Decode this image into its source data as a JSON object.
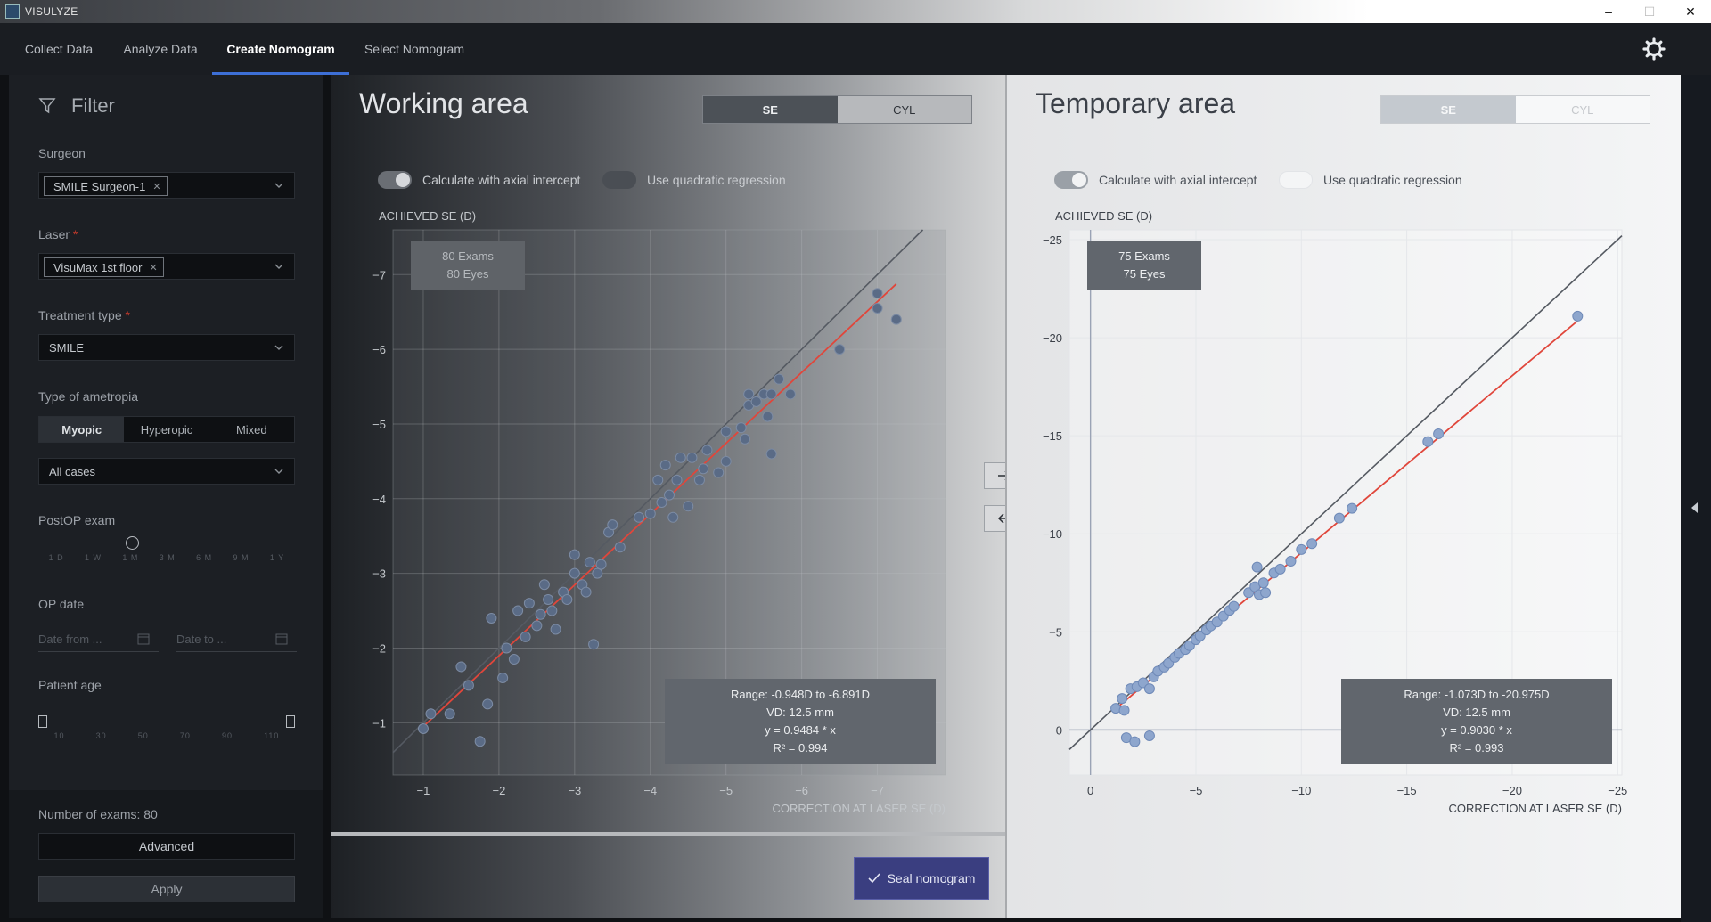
{
  "window": {
    "title": "VISULYZE",
    "controls": {
      "minimize": "–",
      "maximize": "☐",
      "close": "✕"
    }
  },
  "nav": {
    "tabs": [
      "Collect Data",
      "Analyze Data",
      "Create Nomogram",
      "Select Nomogram"
    ],
    "active": "Create Nomogram"
  },
  "filter": {
    "title": "Filter",
    "surgeon": {
      "label": "Surgeon",
      "chip": "SMILE Surgeon-1"
    },
    "laser": {
      "label": "Laser",
      "required": "*",
      "chip": "VisuMax 1st floor"
    },
    "treatment": {
      "label": "Treatment type",
      "required": "*",
      "value": "SMILE"
    },
    "ametropia": {
      "label": "Type of ametropia",
      "options": [
        "Myopic",
        "Hyperopic",
        "Mixed"
      ],
      "selected": "Myopic",
      "cases": "All cases"
    },
    "postop": {
      "label": "PostOP exam",
      "ticks": [
        "1 D",
        "1 W",
        "1 M",
        "3 M",
        "6 M",
        "9 M",
        "1 Y"
      ],
      "selected_index": 2
    },
    "opdate": {
      "label": "OP date",
      "from_placeholder": "Date from ...",
      "to_placeholder": "Date to ..."
    },
    "age": {
      "label": "Patient age",
      "ticks": [
        "10",
        "30",
        "50",
        "70",
        "90",
        "110"
      ]
    },
    "exams": "Number of exams: 80",
    "advanced": "Advanced",
    "apply": "Apply"
  },
  "working": {
    "title": "Working area",
    "se": "SE",
    "cyl": "CYL",
    "toggle1": "Calculate with axial intercept",
    "toggle2": "Use quadratic regression",
    "counts": {
      "exams": "80 Exams",
      "eyes": "80 Eyes"
    },
    "stats": {
      "range": "Range: -0.948D to -6.891D",
      "vd": "VD: 12.5 mm",
      "eq": "y = 0.9484 * x",
      "r2": "R² = 0.994"
    },
    "seal": "Seal nomogram",
    "chart_data": {
      "type": "scatter",
      "title": "",
      "ylabel": "ACHIEVED SE (D)",
      "xlabel": "CORRECTION AT LASER SE (D)",
      "xlim": [
        -0.6,
        -7.9
      ],
      "ylim": [
        -0.3,
        -7.6
      ],
      "xticks": [
        -1,
        -2,
        -3,
        -4,
        -5,
        -6,
        -7
      ],
      "yticks": [
        -1,
        -2,
        -3,
        -4,
        -5,
        -6,
        -7
      ],
      "xtick_labels": [
        "−1",
        "−2",
        "−3",
        "−4",
        "−5",
        "−6",
        "−7"
      ],
      "ytick_labels": [
        "−1",
        "−2",
        "−3",
        "−4",
        "−5",
        "−6",
        "−7"
      ],
      "identity_line": true,
      "slope": 0.9484,
      "points": [
        [
          -1.0,
          -0.92
        ],
        [
          -1.1,
          -1.12
        ],
        [
          -1.35,
          -1.12
        ],
        [
          -1.5,
          -1.75
        ],
        [
          -1.6,
          -1.5
        ],
        [
          -1.75,
          -0.75
        ],
        [
          -1.85,
          -1.25
        ],
        [
          -1.9,
          -2.4
        ],
        [
          -2.05,
          -1.6
        ],
        [
          -2.1,
          -2.0
        ],
        [
          -2.2,
          -1.85
        ],
        [
          -2.25,
          -2.5
        ],
        [
          -2.35,
          -2.15
        ],
        [
          -2.4,
          -2.6
        ],
        [
          -2.5,
          -2.3
        ],
        [
          -2.55,
          -2.45
        ],
        [
          -2.6,
          -2.85
        ],
        [
          -2.65,
          -2.65
        ],
        [
          -2.7,
          -2.5
        ],
        [
          -2.75,
          -2.25
        ],
        [
          -2.85,
          -2.75
        ],
        [
          -2.9,
          -2.65
        ],
        [
          -3.0,
          -3.0
        ],
        [
          -3.0,
          -3.25
        ],
        [
          -3.1,
          -2.85
        ],
        [
          -3.15,
          -2.75
        ],
        [
          -3.2,
          -3.15
        ],
        [
          -3.25,
          -2.05
        ],
        [
          -3.3,
          -3.0
        ],
        [
          -3.35,
          -3.12
        ],
        [
          -3.45,
          -3.55
        ],
        [
          -3.5,
          -3.65
        ],
        [
          -3.6,
          -3.35
        ],
        [
          -3.85,
          -3.75
        ],
        [
          -4.0,
          -3.8
        ],
        [
          -4.1,
          -4.25
        ],
        [
          -4.15,
          -3.95
        ],
        [
          -4.2,
          -4.45
        ],
        [
          -4.25,
          -4.05
        ],
        [
          -4.3,
          -3.75
        ],
        [
          -4.35,
          -4.25
        ],
        [
          -4.4,
          -4.55
        ],
        [
          -4.5,
          -3.9
        ],
        [
          -4.55,
          -4.55
        ],
        [
          -4.65,
          -4.25
        ],
        [
          -4.7,
          -4.4
        ],
        [
          -4.75,
          -4.65
        ],
        [
          -4.9,
          -4.35
        ],
        [
          -5.0,
          -4.9
        ],
        [
          -5.0,
          -4.5
        ],
        [
          -5.2,
          -4.95
        ],
        [
          -5.25,
          -4.8
        ],
        [
          -5.3,
          -5.25
        ],
        [
          -5.3,
          -5.4
        ],
        [
          -5.4,
          -5.3
        ],
        [
          -5.5,
          -5.4
        ],
        [
          -5.55,
          -5.1
        ],
        [
          -5.6,
          -5.4
        ],
        [
          -5.6,
          -4.6
        ],
        [
          -5.7,
          -5.6
        ],
        [
          -5.85,
          -5.4
        ],
        [
          -6.5,
          -6.0
        ],
        [
          -7.0,
          -6.55
        ],
        [
          -7.0,
          -6.75
        ],
        [
          -7.25,
          -6.4
        ]
      ]
    }
  },
  "temporary": {
    "title": "Temporary area",
    "se": "SE",
    "cyl": "CYL",
    "toggle1": "Calculate with axial intercept",
    "toggle2": "Use quadratic regression",
    "counts": {
      "exams": "75 Exams",
      "eyes": "75 Eyes"
    },
    "stats": {
      "range": "Range: -1.073D to -20.975D",
      "vd": "VD: 12.5 mm",
      "eq": "y = 0.9030 * x",
      "r2": "R² = 0.993"
    },
    "chart_data": {
      "type": "scatter",
      "title": "",
      "ylabel": "ACHIEVED SE (D)",
      "xlabel": "CORRECTION AT LASER SE (D)",
      "xlim": [
        1.0,
        -25.2
      ],
      "ylim": [
        2.3,
        -25.5
      ],
      "xticks": [
        0,
        -5,
        -10,
        -15,
        -20,
        -25
      ],
      "yticks": [
        0,
        -5,
        -10,
        -15,
        -20,
        -25
      ],
      "xtick_labels": [
        "0",
        "−5",
        "−10",
        "−15",
        "−20",
        "−25"
      ],
      "ytick_labels": [
        "0",
        "−5",
        "−10",
        "−15",
        "−20",
        "−25"
      ],
      "identity_line": true,
      "slope": 0.903,
      "points": [
        [
          -1.2,
          -1.1
        ],
        [
          -1.5,
          -1.6
        ],
        [
          -1.6,
          -1.0
        ],
        [
          -1.7,
          0.4
        ],
        [
          -1.9,
          -2.1
        ],
        [
          -2.1,
          0.6
        ],
        [
          -2.2,
          -2.2
        ],
        [
          -2.5,
          -2.4
        ],
        [
          -2.8,
          -2.1
        ],
        [
          -2.8,
          0.3
        ],
        [
          -3.0,
          -2.7
        ],
        [
          -3.2,
          -3.0
        ],
        [
          -3.5,
          -3.2
        ],
        [
          -3.7,
          -3.4
        ],
        [
          -4.0,
          -3.7
        ],
        [
          -4.2,
          -3.9
        ],
        [
          -4.5,
          -4.1
        ],
        [
          -4.7,
          -4.3
        ],
        [
          -5.0,
          -4.6
        ],
        [
          -5.2,
          -4.8
        ],
        [
          -5.5,
          -5.1
        ],
        [
          -5.7,
          -5.3
        ],
        [
          -6.0,
          -5.5
        ],
        [
          -6.3,
          -5.8
        ],
        [
          -6.6,
          -6.1
        ],
        [
          -6.8,
          -6.3
        ],
        [
          -7.5,
          -7.0
        ],
        [
          -7.8,
          -7.3
        ],
        [
          -7.9,
          -8.3
        ],
        [
          -8.0,
          -6.9
        ],
        [
          -8.2,
          -7.5
        ],
        [
          -8.3,
          -7.0
        ],
        [
          -8.7,
          -8.0
        ],
        [
          -9.0,
          -8.2
        ],
        [
          -9.5,
          -8.6
        ],
        [
          -10.0,
          -9.2
        ],
        [
          -10.5,
          -9.5
        ],
        [
          -11.8,
          -10.8
        ],
        [
          -12.4,
          -11.3
        ],
        [
          -16.0,
          -14.7
        ],
        [
          -16.5,
          -15.1
        ],
        [
          -23.1,
          -21.1
        ]
      ]
    }
  }
}
